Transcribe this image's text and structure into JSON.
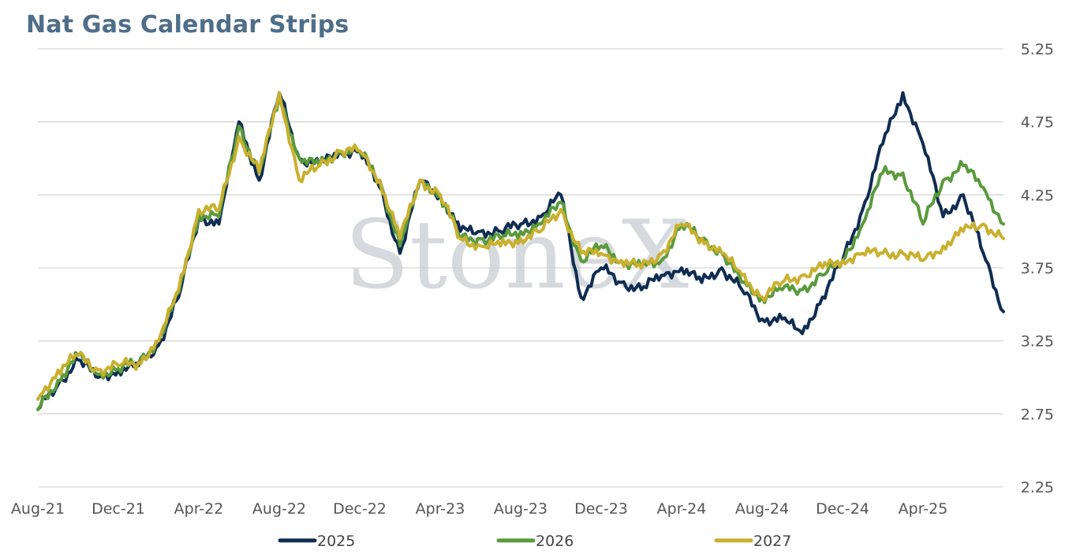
{
  "title": "Nat Gas Calendar Strips",
  "watermark": "StoneX",
  "colors": {
    "2025": "#0f2d52",
    "2026": "#5a9a3c",
    "2027": "#c9b02f",
    "grid": "#d6d6d6"
  },
  "chart_data": {
    "type": "line",
    "title": "Nat Gas Calendar Strips",
    "ylim": [
      2.25,
      5.25
    ],
    "yticks": [
      "5.25",
      "4.75",
      "4.25",
      "3.75",
      "3.25",
      "2.75",
      "2.25"
    ],
    "ytick_values": [
      5.25,
      4.75,
      4.25,
      3.75,
      3.25,
      2.75,
      2.25
    ],
    "y_axis_side": "right",
    "xticks": [
      "Aug-21",
      "Dec-21",
      "Apr-22",
      "Aug-22",
      "Dec-22",
      "Apr-23",
      "Aug-23",
      "Dec-23",
      "Apr-24",
      "Aug-24",
      "Dec-24",
      "Apr-25"
    ],
    "xlim": [
      "2021-08",
      "2025-08"
    ],
    "grid": true,
    "legend_position": "bottom",
    "x": [
      "2021-08",
      "2021-09",
      "2021-10",
      "2021-11",
      "2021-12",
      "2022-01",
      "2022-02",
      "2022-03",
      "2022-04",
      "2022-05",
      "2022-06",
      "2022-07",
      "2022-08",
      "2022-09",
      "2022-10",
      "2022-11",
      "2022-12",
      "2023-01",
      "2023-02",
      "2023-03",
      "2023-04",
      "2023-05",
      "2023-06",
      "2023-07",
      "2023-08",
      "2023-09",
      "2023-10",
      "2023-11",
      "2023-12",
      "2024-01",
      "2024-02",
      "2024-03",
      "2024-04",
      "2024-05",
      "2024-06",
      "2024-07",
      "2024-08",
      "2024-09",
      "2024-10",
      "2024-11",
      "2024-12",
      "2025-01",
      "2025-02",
      "2025-03",
      "2025-04",
      "2025-05",
      "2025-06",
      "2025-07",
      "2025-08"
    ],
    "series": [
      {
        "name": "2025",
        "color": "#0f2d52",
        "values": [
          2.78,
          2.95,
          3.12,
          3.0,
          3.05,
          3.08,
          3.22,
          3.55,
          4.1,
          4.05,
          4.75,
          4.35,
          4.95,
          4.5,
          4.45,
          4.55,
          4.55,
          4.3,
          3.85,
          4.35,
          4.25,
          4.0,
          4.0,
          4.0,
          4.05,
          4.1,
          4.25,
          3.55,
          3.75,
          3.65,
          3.6,
          3.7,
          3.75,
          3.65,
          3.75,
          3.6,
          3.4,
          3.4,
          3.3,
          3.55,
          3.8,
          4.15,
          4.6,
          4.95,
          4.6,
          4.1,
          4.25,
          3.85,
          3.45
        ]
      },
      {
        "name": "2026",
        "color": "#5a9a3c",
        "values": [
          2.78,
          2.98,
          3.15,
          3.02,
          3.06,
          3.1,
          3.25,
          3.58,
          4.12,
          4.1,
          4.72,
          4.4,
          4.92,
          4.5,
          4.45,
          4.55,
          4.55,
          4.35,
          3.9,
          4.35,
          4.25,
          3.95,
          3.95,
          3.95,
          4.0,
          4.05,
          4.2,
          3.8,
          3.9,
          3.8,
          3.75,
          3.8,
          4.05,
          3.95,
          3.85,
          3.65,
          3.55,
          3.6,
          3.6,
          3.7,
          3.8,
          4.05,
          4.4,
          4.4,
          4.05,
          4.35,
          4.45,
          4.3,
          4.05
        ]
      },
      {
        "name": "2027",
        "color": "#c9b02f",
        "values": [
          2.85,
          3.05,
          3.15,
          3.05,
          3.08,
          3.1,
          3.25,
          3.6,
          4.15,
          4.15,
          4.65,
          4.4,
          4.95,
          4.35,
          4.45,
          4.55,
          4.55,
          4.35,
          3.95,
          4.35,
          4.25,
          3.95,
          3.9,
          3.9,
          3.95,
          4.0,
          4.15,
          3.85,
          3.85,
          3.8,
          3.75,
          3.85,
          4.05,
          3.95,
          3.85,
          3.7,
          3.55,
          3.65,
          3.7,
          3.75,
          3.8,
          3.85,
          3.85,
          3.85,
          3.8,
          3.9,
          4.0,
          4.05,
          3.95
        ]
      }
    ]
  }
}
